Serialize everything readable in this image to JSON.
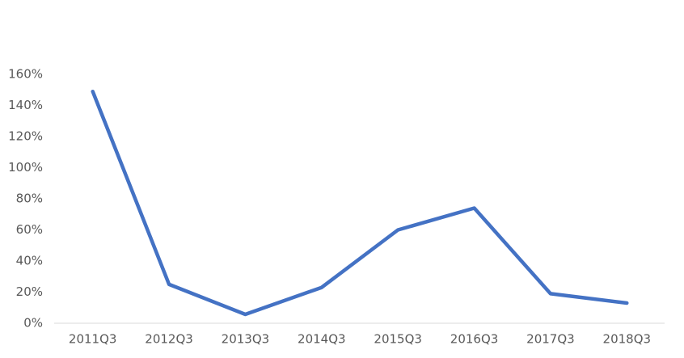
{
  "chart_data": {
    "type": "line",
    "categories": [
      "2011Q3",
      "2012Q3",
      "2013Q3",
      "2014Q3",
      "2015Q3",
      "2016Q3",
      "2017Q3",
      "2018Q3"
    ],
    "values": [
      149,
      25,
      5.7,
      23,
      60,
      74,
      19,
      13
    ],
    "color": "#4472c4",
    "ylim": [
      0,
      160
    ],
    "yticks": [
      {
        "value": 0,
        "label": "0%"
      },
      {
        "value": 20,
        "label": "20%"
      },
      {
        "value": 40,
        "label": "40%"
      },
      {
        "value": 60,
        "label": "60%"
      },
      {
        "value": 80,
        "label": "80%"
      },
      {
        "value": 100,
        "label": "100%"
      },
      {
        "value": 120,
        "label": "120%"
      },
      {
        "value": 140,
        "label": "140%"
      },
      {
        "value": 160,
        "label": "160%"
      }
    ],
    "grid": false
  }
}
